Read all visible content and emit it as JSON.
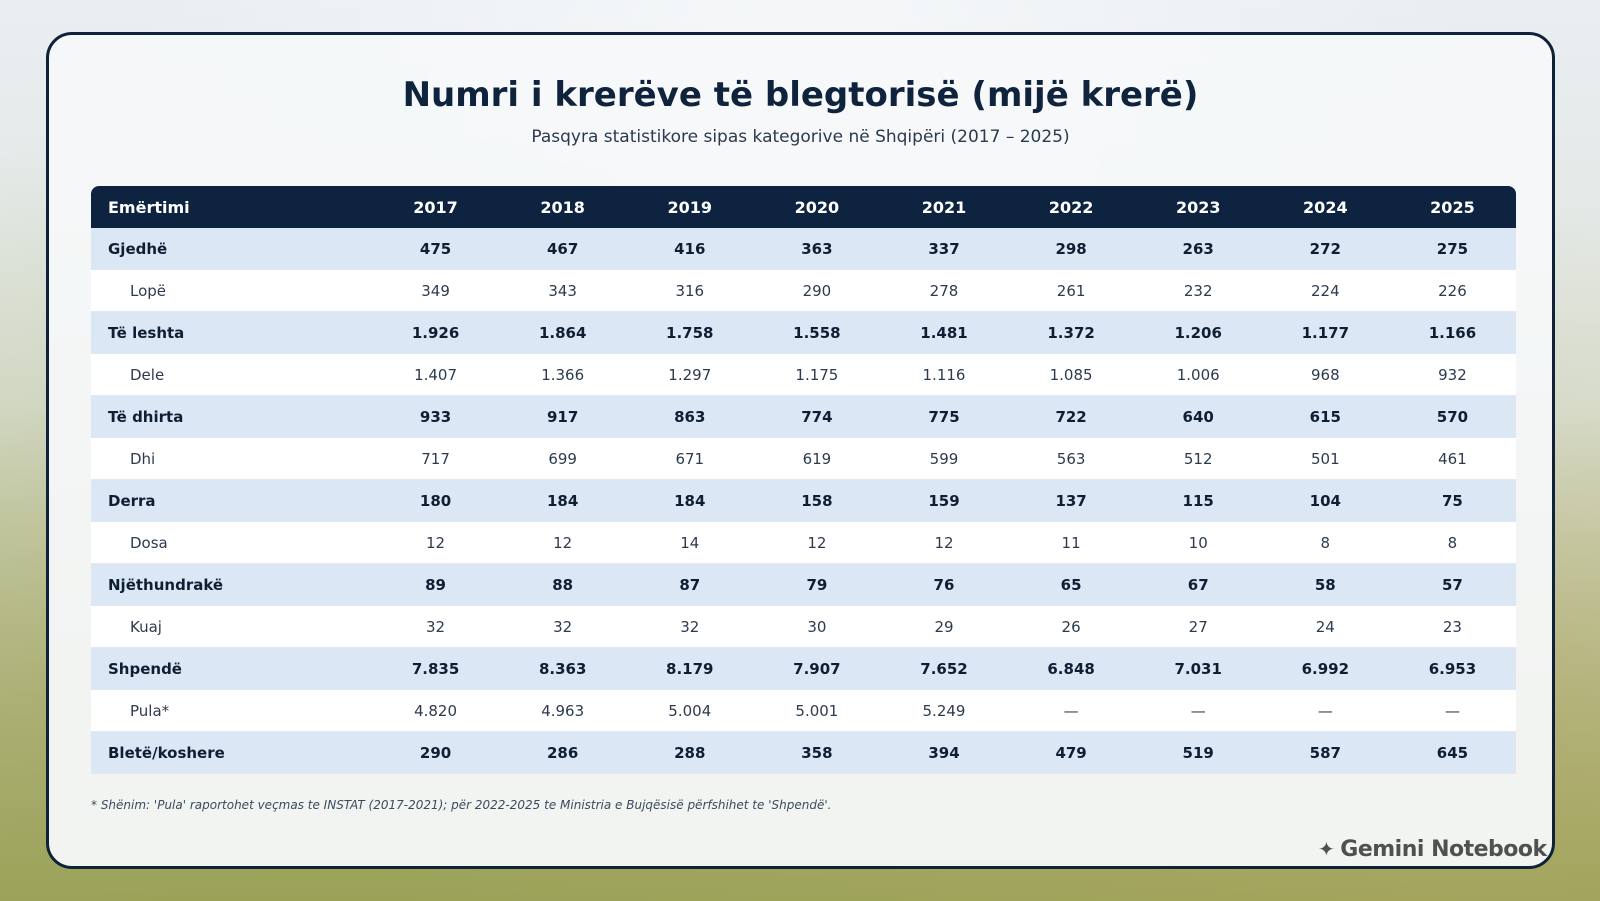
{
  "title": "Numri i krerëve të blegtorisë (mijë krerë)",
  "subtitle": "Pasqyra statistikore sipas kategorive në Shqipëri (2017 – 2025)",
  "table": {
    "headers": [
      "Emërtimi",
      "2017",
      "2018",
      "2019",
      "2020",
      "2021",
      "2022",
      "2023",
      "2024",
      "2025"
    ],
    "rows": [
      {
        "label": "Gjedhë",
        "type": "main",
        "values": [
          "475",
          "467",
          "416",
          "363",
          "337",
          "298",
          "263",
          "272",
          "275"
        ]
      },
      {
        "label": "Lopë",
        "type": "sub",
        "values": [
          "349",
          "343",
          "316",
          "290",
          "278",
          "261",
          "232",
          "224",
          "226"
        ]
      },
      {
        "label": "Të leshta",
        "type": "main",
        "values": [
          "1.926",
          "1.864",
          "1.758",
          "1.558",
          "1.481",
          "1.372",
          "1.206",
          "1.177",
          "1.166"
        ]
      },
      {
        "label": "Dele",
        "type": "sub",
        "values": [
          "1.407",
          "1.366",
          "1.297",
          "1.175",
          "1.116",
          "1.085",
          "1.006",
          "968",
          "932"
        ]
      },
      {
        "label": "Të dhirta",
        "type": "main",
        "values": [
          "933",
          "917",
          "863",
          "774",
          "775",
          "722",
          "640",
          "615",
          "570"
        ]
      },
      {
        "label": "Dhi",
        "type": "sub",
        "values": [
          "717",
          "699",
          "671",
          "619",
          "599",
          "563",
          "512",
          "501",
          "461"
        ]
      },
      {
        "label": "Derra",
        "type": "main",
        "values": [
          "180",
          "184",
          "184",
          "158",
          "159",
          "137",
          "115",
          "104",
          "75"
        ]
      },
      {
        "label": "Dosa",
        "type": "sub",
        "values": [
          "12",
          "12",
          "14",
          "12",
          "12",
          "11",
          "10",
          "8",
          "8"
        ]
      },
      {
        "label": "Njëthundrakë",
        "type": "main",
        "values": [
          "89",
          "88",
          "87",
          "79",
          "76",
          "65",
          "67",
          "58",
          "57"
        ]
      },
      {
        "label": "Kuaj",
        "type": "sub",
        "values": [
          "32",
          "32",
          "32",
          "30",
          "29",
          "26",
          "27",
          "24",
          "23"
        ]
      },
      {
        "label": "Shpendë",
        "type": "main",
        "values": [
          "7.835",
          "8.363",
          "8.179",
          "7.907",
          "7.652",
          "6.848",
          "7.031",
          "6.992",
          "6.953"
        ]
      },
      {
        "label": "Pula*",
        "type": "sub",
        "values": [
          "4.820",
          "4.963",
          "5.004",
          "5.001",
          "5.249",
          "—",
          "—",
          "—",
          "—"
        ]
      },
      {
        "label": "Bletë/koshere",
        "type": "main",
        "values": [
          "290",
          "286",
          "288",
          "358",
          "394",
          "479",
          "519",
          "587",
          "645"
        ]
      }
    ]
  },
  "note": "* Shënim: 'Pula' raportohet veçmas te INSTAT (2017-2021); për 2022-2025 te Ministria e Bujqësisë përfshihet te 'Shpendë'.",
  "watermark": {
    "text": "Gemini Notebook",
    "icon": "sparkle-icon"
  },
  "colors": {
    "header_bg": "#0d2340",
    "main_row_bg": "#dbe7f5",
    "sub_row_bg": "#ffffff",
    "title": "#10233d"
  }
}
